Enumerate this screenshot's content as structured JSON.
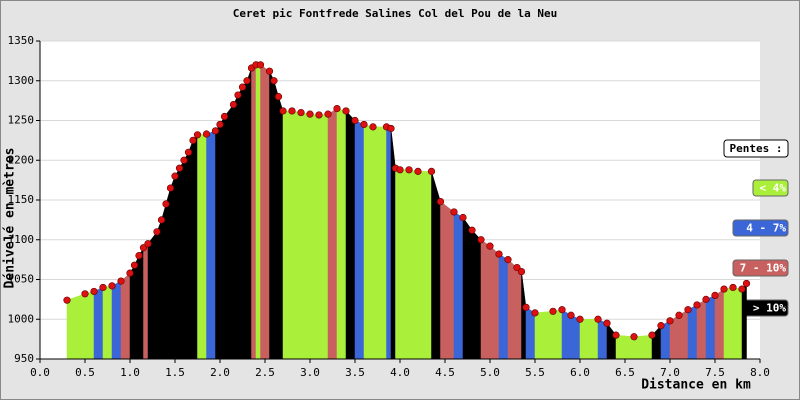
{
  "chart_data": {
    "type": "profile",
    "title": "Ceret pic Fontfrede Salines Col del Pou de la Neu",
    "x_label": "Distance en km",
    "y_label": "Dénivelé en mètres",
    "xlim": [
      0,
      8
    ],
    "ylim": [
      950,
      1350
    ],
    "xticks": [
      {
        "value": 0,
        "label": "0.0"
      },
      0.5,
      {
        "value": 1,
        "label": "1.0"
      },
      1.5,
      {
        "value": 2,
        "label": "2.0"
      },
      2.5,
      {
        "value": 3,
        "label": "3.0"
      },
      3.5,
      {
        "value": 4,
        "label": "4.0"
      },
      4.5,
      {
        "value": 5,
        "label": "5.0"
      },
      5.5,
      {
        "value": 6,
        "label": "6.0"
      },
      6.5,
      {
        "value": 7,
        "label": "7.0"
      },
      7.5,
      {
        "value": 8,
        "label": "8.0"
      }
    ],
    "yticks": [
      950,
      1000,
      1050,
      1100,
      1150,
      1200,
      1250,
      1300,
      1350
    ],
    "grid": true,
    "point_color": "#dd1111",
    "x": [
      0.3,
      0.5,
      0.6,
      0.7,
      0.8,
      0.9,
      1.0,
      1.05,
      1.1,
      1.15,
      1.2,
      1.3,
      1.35,
      1.4,
      1.45,
      1.5,
      1.55,
      1.6,
      1.65,
      1.7,
      1.75,
      1.85,
      1.95,
      2.0,
      2.05,
      2.15,
      2.2,
      2.25,
      2.3,
      2.35,
      2.4,
      2.45,
      2.55,
      2.6,
      2.65,
      2.7,
      2.8,
      2.9,
      3.0,
      3.1,
      3.2,
      3.3,
      3.4,
      3.5,
      3.6,
      3.7,
      3.85,
      3.9,
      3.95,
      4.0,
      4.1,
      4.2,
      4.35,
      4.45,
      4.6,
      4.7,
      4.8,
      4.9,
      5.0,
      5.1,
      5.2,
      5.3,
      5.35,
      5.4,
      5.5,
      5.7,
      5.8,
      5.9,
      6.0,
      6.2,
      6.3,
      6.4,
      6.6,
      6.8,
      6.9,
      7.0,
      7.1,
      7.2,
      7.3,
      7.4,
      7.5,
      7.6,
      7.7,
      7.8,
      7.85
    ],
    "values": [
      1024,
      1032,
      1035,
      1040,
      1042,
      1048,
      1058,
      1068,
      1080,
      1090,
      1095,
      1110,
      1125,
      1145,
      1165,
      1180,
      1190,
      1200,
      1210,
      1225,
      1232,
      1233,
      1237,
      1245,
      1255,
      1270,
      1282,
      1292,
      1300,
      1316,
      1320,
      1320,
      1312,
      1300,
      1280,
      1262,
      1262,
      1260,
      1258,
      1257,
      1258,
      1265,
      1262,
      1250,
      1245,
      1242,
      1242,
      1240,
      1190,
      1188,
      1188,
      1186,
      1186,
      1148,
      1135,
      1128,
      1112,
      1100,
      1092,
      1082,
      1075,
      1065,
      1060,
      1015,
      1008,
      1010,
      1012,
      1005,
      1000,
      1000,
      995,
      980,
      978,
      980,
      992,
      998,
      1005,
      1012,
      1018,
      1025,
      1030,
      1038,
      1040,
      1038,
      1045
    ],
    "segment_colors": [
      "#aaf03a",
      "#aaf03a",
      "#3a66d8",
      "#aaf03a",
      "#3a66d8",
      "#c86060",
      "#000000",
      "#000000",
      "#000000",
      "#c86060",
      "#000000",
      "#000000",
      "#000000",
      "#000000",
      "#000000",
      "#000000",
      "#000000",
      "#000000",
      "#000000",
      "#000000",
      "#aaf03a",
      "#3a66d8",
      "#000000",
      "#000000",
      "#000000",
      "#000000",
      "#000000",
      "#000000",
      "#000000",
      "#c86060",
      "#aaf03a",
      "#c86060",
      "#000000",
      "#000000",
      "#000000",
      "#aaf03a",
      "#aaf03a",
      "#aaf03a",
      "#aaf03a",
      "#aaf03a",
      "#c86060",
      "#aaf03a",
      "#000000",
      "#3a66d8",
      "#aaf03a",
      "#aaf03a",
      "#3a66d8",
      "#000000",
      "#aaf03a",
      "#aaf03a",
      "#aaf03a",
      "#aaf03a",
      "#000000",
      "#c86060",
      "#3a66d8",
      "#000000",
      "#000000",
      "#c86060",
      "#c86060",
      "#3a66d8",
      "#c86060",
      "#c86060",
      "#000000",
      "#3a66d8",
      "#aaf03a",
      "#aaf03a",
      "#3a66d8",
      "#3a66d8",
      "#aaf03a",
      "#3a66d8",
      "#000000",
      "#aaf03a",
      "#aaf03a",
      "#000000",
      "#3a66d8",
      "#c86060",
      "#c86060",
      "#3a66d8",
      "#c86060",
      "#3a66d8",
      "#c86060",
      "#aaf03a",
      "#aaf03a",
      "#000000"
    ],
    "legend": {
      "title": "Pentes :",
      "items": [
        {
          "label": "< 4%",
          "color": "#aaf03a"
        },
        {
          "label": "4 - 7%",
          "color": "#3a66d8"
        },
        {
          "label": "7 - 10%",
          "color": "#c86060"
        },
        {
          "label": "> 10%",
          "color": "#000000"
        }
      ]
    }
  }
}
